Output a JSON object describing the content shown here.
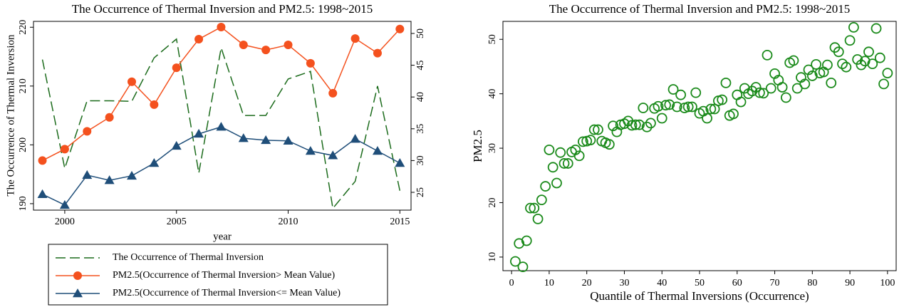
{
  "chart_data": [
    {
      "type": "line",
      "title": "The Occurrence of Thermal Inversion and PM2.5: 1998~2015",
      "x_label": "year",
      "y_label": "The Occurrence of Thermal Inversion",
      "x": [
        1999,
        2000,
        2001,
        2002,
        2003,
        2004,
        2005,
        2006,
        2007,
        2008,
        2009,
        2010,
        2011,
        2012,
        2013,
        2014,
        2015
      ],
      "xlim": [
        1998.6,
        2015.5
      ],
      "xticks": [
        2000,
        2005,
        2010,
        2015
      ],
      "ylim": [
        188.9,
        221
      ],
      "yticks": [
        190,
        200,
        210,
        220
      ],
      "y2lim": [
        22.2,
        51.9
      ],
      "y2ticks": [
        25,
        30,
        35,
        40,
        45,
        50
      ],
      "legend": "below",
      "series": [
        {
          "name": "The Occurrence of Thermal Inversion",
          "color": "#1b6b1b",
          "linestyle": "dashed",
          "axis": "y",
          "values": [
            214.5,
            196,
            207.5,
            207.5,
            207.4,
            214.8,
            218,
            195.2,
            216.5,
            205,
            205,
            211.2,
            212.5,
            189.2,
            193.8,
            210,
            192.2
          ]
        },
        {
          "name": "PM2.5(Occurrence of Thermal Inversion>  Mean Value)",
          "color": "#f4511e",
          "linestyle": "solid",
          "marker": "circle",
          "axis": "y2",
          "values": [
            30.0,
            31.8,
            34.6,
            36.8,
            42.4,
            38.8,
            44.6,
            49.1,
            51.0,
            48.2,
            47.4,
            48.2,
            45.3,
            40.6,
            49.2,
            46.9,
            50.7
          ]
        },
        {
          "name": "PM2.5(Occurrence of Thermal Inversion<= Mean Value)",
          "color": "#1f4e79",
          "linestyle": "solid",
          "marker": "triangle",
          "axis": "y2",
          "values": [
            24.7,
            23.0,
            27.7,
            26.9,
            27.6,
            29.6,
            32.3,
            34.2,
            35.3,
            33.5,
            33.2,
            33.1,
            31.5,
            30.8,
            33.4,
            31.5,
            29.6
          ]
        }
      ]
    },
    {
      "type": "scatter",
      "title": "The Occurrence of Thermal Inversion and PM2.5: 1998~2015",
      "x_label": "Quantile of Thermal Inversions (Occurrence)",
      "y_label": "PM2.5",
      "xlim": [
        -2.3,
        102.3
      ],
      "xticks": [
        0,
        10,
        20,
        30,
        40,
        50,
        60,
        70,
        80,
        90,
        100
      ],
      "ylim": [
        7.5,
        53.3
      ],
      "yticks": [
        10,
        20,
        30,
        40,
        50
      ],
      "x": [
        1,
        2,
        3,
        4,
        5,
        6,
        7,
        8,
        9,
        10,
        11,
        12,
        13,
        14,
        15,
        16,
        17,
        18,
        19,
        20,
        21,
        22,
        23,
        24,
        25,
        26,
        27,
        28,
        29,
        30,
        31,
        32,
        33,
        34,
        35,
        36,
        37,
        38,
        39,
        40,
        41,
        42,
        43,
        44,
        45,
        46,
        47,
        48,
        49,
        50,
        51,
        52,
        53,
        54,
        55,
        56,
        57,
        58,
        59,
        60,
        61,
        62,
        63,
        64,
        65,
        66,
        67,
        68,
        69,
        70,
        71,
        72,
        73,
        74,
        75,
        76,
        77,
        78,
        79,
        80,
        81,
        82,
        83,
        84,
        85,
        86,
        87,
        88,
        89,
        90,
        91,
        92,
        93,
        94,
        95,
        96,
        97,
        98,
        99,
        100
      ],
      "series": [
        {
          "color": "#1a8a1a",
          "marker": "hollow-circle",
          "values": [
            9.2,
            12.5,
            8.2,
            13,
            19,
            19,
            17,
            20.5,
            23,
            29.7,
            26.5,
            23.6,
            29.2,
            27.2,
            27.2,
            29.3,
            29.7,
            28.6,
            31.2,
            31.3,
            31.5,
            33.4,
            33.4,
            31.3,
            31,
            30.7,
            34.1,
            33,
            34.3,
            34.5,
            35,
            34.2,
            34.3,
            34.3,
            37.4,
            33.9,
            34.6,
            37.3,
            37.7,
            35.5,
            37.9,
            38,
            40.8,
            37.6,
            39.8,
            37.4,
            37.6,
            37.6,
            40.2,
            36.4,
            36.8,
            35.5,
            37.2,
            37.2,
            38.7,
            38.9,
            42,
            36,
            36.3,
            39.8,
            38.5,
            41,
            40,
            40.5,
            41.2,
            40.2,
            40.1,
            47.1,
            41,
            43.7,
            42.5,
            41.2,
            39.3,
            45.7,
            46.1,
            41,
            43,
            41.8,
            44.4,
            43.3,
            45.4,
            43.8,
            44,
            45.3,
            42,
            48.5,
            47.7,
            45.5,
            44.9,
            49.8,
            52.2,
            46.3,
            45.3,
            46,
            47.7,
            45.5,
            52,
            46.6,
            41.8,
            43.8
          ]
        }
      ]
    }
  ]
}
